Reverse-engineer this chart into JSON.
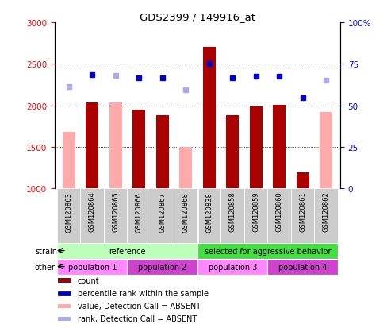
{
  "title": "GDS2399 / 149916_at",
  "samples": [
    "GSM120863",
    "GSM120864",
    "GSM120865",
    "GSM120866",
    "GSM120867",
    "GSM120868",
    "GSM120838",
    "GSM120858",
    "GSM120859",
    "GSM120860",
    "GSM120861",
    "GSM120862"
  ],
  "bar_values": [
    null,
    2030,
    null,
    1950,
    1880,
    null,
    2700,
    1880,
    1990,
    2010,
    1190,
    null
  ],
  "absent_bar_values": [
    1680,
    null,
    2030,
    null,
    null,
    1500,
    null,
    null,
    null,
    null,
    null,
    1920
  ],
  "percentile_rank": [
    null,
    2370,
    null,
    2330,
    2330,
    null,
    2500,
    2330,
    2350,
    2350,
    2090,
    null
  ],
  "absent_rank": [
    2230,
    null,
    2360,
    null,
    null,
    2190,
    null,
    null,
    null,
    null,
    null,
    2300
  ],
  "ylim_left": [
    1000,
    3000
  ],
  "ylim_right": [
    0,
    100
  ],
  "yticks_left": [
    1000,
    1500,
    2000,
    2500,
    3000
  ],
  "yticks_right": [
    0,
    25,
    50,
    75,
    100
  ],
  "bar_color_present": "#aa0000",
  "bar_color_absent": "#ffaaaa",
  "dot_color_present": "#0000cc",
  "dot_color_absent": "#aaaaee",
  "strain_groups": [
    {
      "label": "reference",
      "start": 0,
      "end": 5,
      "color": "#bbffbb"
    },
    {
      "label": "selected for aggressive behavior",
      "start": 6,
      "end": 11,
      "color": "#44dd44"
    }
  ],
  "other_groups": [
    {
      "label": "population 1",
      "start": 0,
      "end": 2,
      "color": "#ff88ff"
    },
    {
      "label": "population 2",
      "start": 3,
      "end": 5,
      "color": "#cc44cc"
    },
    {
      "label": "population 3",
      "start": 6,
      "end": 8,
      "color": "#ff88ff"
    },
    {
      "label": "population 4",
      "start": 9,
      "end": 11,
      "color": "#cc44cc"
    }
  ],
  "legend_items": [
    {
      "label": "count",
      "color": "#aa0000"
    },
    {
      "label": "percentile rank within the sample",
      "color": "#0000cc"
    },
    {
      "label": "value, Detection Call = ABSENT",
      "color": "#ffaaaa"
    },
    {
      "label": "rank, Detection Call = ABSENT",
      "color": "#aaaaee"
    }
  ],
  "xticklabel_bg": "#cccccc"
}
